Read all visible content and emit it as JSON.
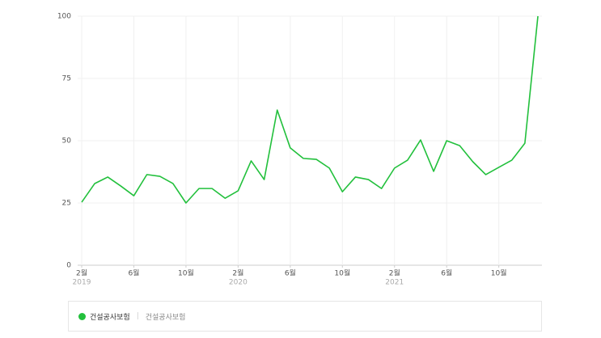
{
  "chart_data": {
    "type": "line",
    "categories": [
      "2월",
      null,
      null,
      null,
      "6월",
      null,
      null,
      null,
      "10월",
      null,
      null,
      null,
      "2월",
      null,
      null,
      null,
      "6월",
      null,
      null,
      null,
      "10월",
      null,
      null,
      null,
      "2월",
      null,
      null,
      null,
      "6월",
      null,
      null,
      null,
      "10월",
      null,
      null,
      null
    ],
    "year_labels": [
      "2019",
      null,
      null,
      null,
      null,
      null,
      null,
      null,
      null,
      null,
      null,
      null,
      "2020",
      null,
      null,
      null,
      null,
      null,
      null,
      null,
      null,
      null,
      null,
      null,
      "2021",
      null,
      null,
      null,
      null,
      null,
      null,
      null,
      null,
      null,
      null,
      null
    ],
    "series": [
      {
        "name": "건설공사보험",
        "color": "#22c03c",
        "values": [
          25.3,
          32.8,
          35.4,
          31.8,
          27.9,
          36.4,
          35.7,
          32.8,
          25,
          30.8,
          30.8,
          26.9,
          29.9,
          41.9,
          34.4,
          62.3,
          47.1,
          42.9,
          42.5,
          39,
          29.5,
          35.4,
          34.4,
          30.8,
          39,
          42.2,
          50.3,
          37.7,
          50,
          48,
          41.6,
          36.4,
          39.3,
          42.2,
          49,
          100
        ]
      }
    ],
    "legend_keywords": [
      "건설공사보험"
    ],
    "ylim": [
      0,
      100
    ],
    "yticks": [
      0,
      25,
      50,
      75,
      100
    ],
    "grid": true
  }
}
